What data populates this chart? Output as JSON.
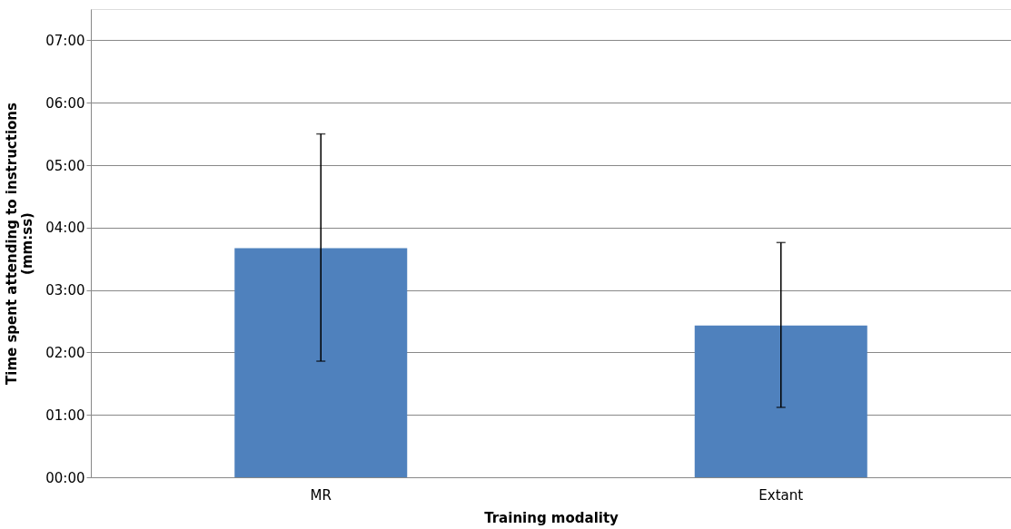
{
  "chart_data": {
    "type": "bar",
    "xlabel": "Training modality",
    "ylabel": "Time spent attending to instructions (mm:ss)",
    "categories": [
      "MR",
      "Extant"
    ],
    "series": [
      {
        "color": "#4f81bd",
        "values": [
          3.67,
          2.43
        ],
        "errors": [
          [
            1.86,
            5.5
          ],
          [
            1.12,
            3.76
          ]
        ]
      }
    ],
    "ylim": [
      0,
      7.5
    ],
    "yticks": [
      {
        "value": 0,
        "label": "00:00"
      },
      {
        "value": 1,
        "label": "01:00"
      },
      {
        "value": 2,
        "label": "02:00"
      },
      {
        "value": 3,
        "label": "03:00"
      },
      {
        "value": 4,
        "label": "04:00"
      },
      {
        "value": 5,
        "label": "05:00"
      },
      {
        "value": 6,
        "label": "06:00"
      },
      {
        "value": 7,
        "label": "07:00"
      }
    ],
    "grid": "y"
  }
}
